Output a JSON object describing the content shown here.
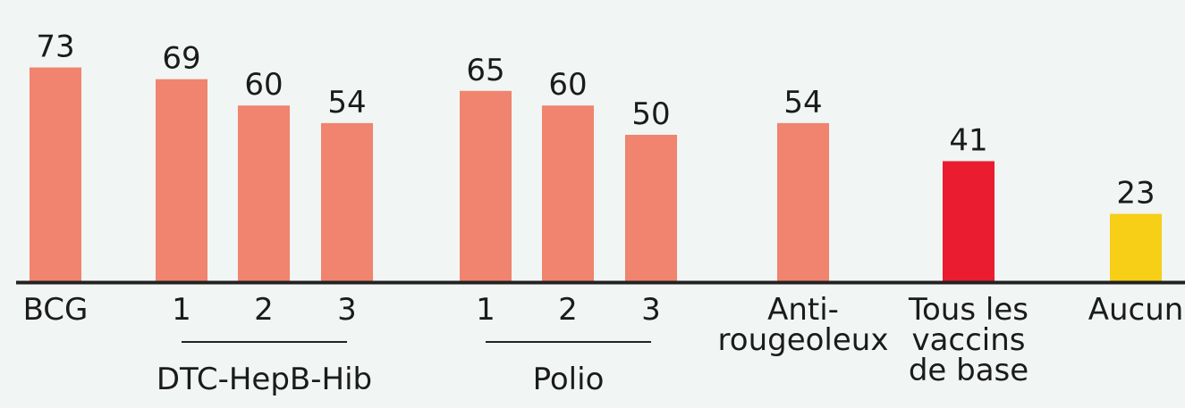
{
  "chart_data": {
    "type": "bar",
    "categories": [
      "BCG",
      "DTC-HepB-Hib 1",
      "DTC-HepB-Hib 2",
      "DTC-HepB-Hib 3",
      "Polio 1",
      "Polio 2",
      "Polio 3",
      "Anti-rougeoleux",
      "Tous les vaccins de base",
      "Aucun"
    ],
    "values": [
      73,
      69,
      60,
      54,
      65,
      60,
      50,
      54,
      41,
      23
    ],
    "tick_labels": [
      [
        "BCG"
      ],
      [
        "1"
      ],
      [
        "2"
      ],
      [
        "3"
      ],
      [
        "1"
      ],
      [
        "2"
      ],
      [
        "3"
      ],
      [
        "Anti-",
        "rougeoleux"
      ],
      [
        "Tous les",
        "vaccins",
        "de base"
      ],
      [
        "Aucun"
      ]
    ],
    "groups": [
      {
        "label": "DTC-HepB-Hib",
        "members": [
          1,
          2,
          3
        ]
      },
      {
        "label": "Polio",
        "members": [
          4,
          5,
          6
        ]
      }
    ],
    "bar_colors": [
      "#f0846e",
      "#f0846e",
      "#f0846e",
      "#f0846e",
      "#f0846e",
      "#f0846e",
      "#f0846e",
      "#f0846e",
      "#ea1c2f",
      "#f7cf17"
    ],
    "ylim": [
      0,
      80
    ],
    "grid": false,
    "title": "",
    "xlabel": "",
    "ylabel": ""
  },
  "colors": {
    "background": "#f1f5f4",
    "axis": "#222222",
    "text": "#1b1b1b"
  }
}
